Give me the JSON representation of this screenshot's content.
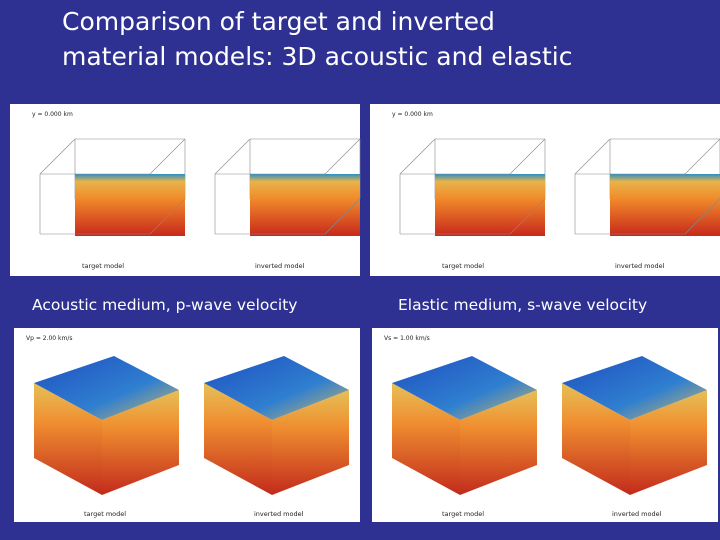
{
  "title": [
    "Comparison of target and inverted",
    "material models: 3D acoustic and elastic"
  ],
  "columns": [
    {
      "top_label": "y = 0.000 km",
      "top_target": "target model",
      "top_inverted": "inverted model",
      "caption": "Acoustic medium, p-wave velocity",
      "bottom_label": "Vp = 2.00 km/s",
      "bottom_target": "target model",
      "bottom_inverted": "inverted model"
    },
    {
      "top_label": "y = 0.000 km",
      "top_target": "target model",
      "top_inverted": "inverted model",
      "caption": "Elastic medium, s-wave velocity",
      "bottom_label": "Vs = 1.00 km/s",
      "bottom_target": "target model",
      "bottom_inverted": "inverted model"
    }
  ]
}
